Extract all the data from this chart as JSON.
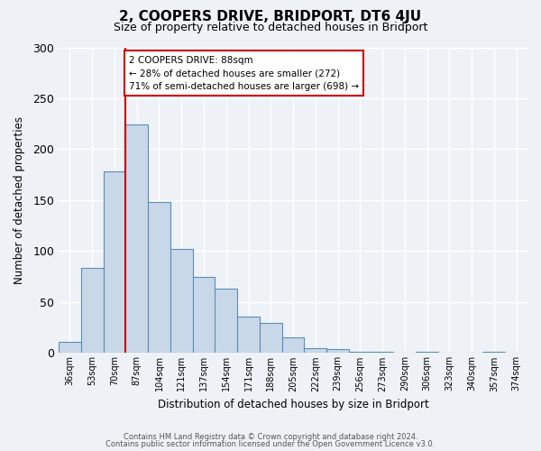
{
  "title": "2, COOPERS DRIVE, BRIDPORT, DT6 4JU",
  "subtitle": "Size of property relative to detached houses in Bridport",
  "xlabel": "Distribution of detached houses by size in Bridport",
  "ylabel": "Number of detached properties",
  "bin_labels": [
    "36sqm",
    "53sqm",
    "70sqm",
    "87sqm",
    "104sqm",
    "121sqm",
    "137sqm",
    "154sqm",
    "171sqm",
    "188sqm",
    "205sqm",
    "222sqm",
    "239sqm",
    "256sqm",
    "273sqm",
    "290sqm",
    "306sqm",
    "323sqm",
    "340sqm",
    "357sqm",
    "374sqm"
  ],
  "bar_values": [
    11,
    84,
    178,
    224,
    148,
    102,
    75,
    63,
    36,
    30,
    15,
    5,
    4,
    1,
    1,
    0,
    1,
    0,
    0,
    1,
    0
  ],
  "bar_color": "#c8d8e8",
  "bar_edge_color": "#5b8db8",
  "vline_x": 3,
  "vline_color": "#cc0000",
  "annotation_title": "2 COOPERS DRIVE: 88sqm",
  "annotation_line1": "← 28% of detached houses are smaller (272)",
  "annotation_line2": "71% of semi-detached houses are larger (698) →",
  "annotation_box_color": "#ffffff",
  "annotation_box_edge": "#cc0000",
  "ylim": [
    0,
    300
  ],
  "yticks": [
    0,
    50,
    100,
    150,
    200,
    250,
    300
  ],
  "footnote1": "Contains HM Land Registry data © Crown copyright and database right 2024.",
  "footnote2": "Contains public sector information licensed under the Open Government Licence v3.0.",
  "bg_color": "#eef2f7",
  "plot_bg_color": "#eef2f7"
}
